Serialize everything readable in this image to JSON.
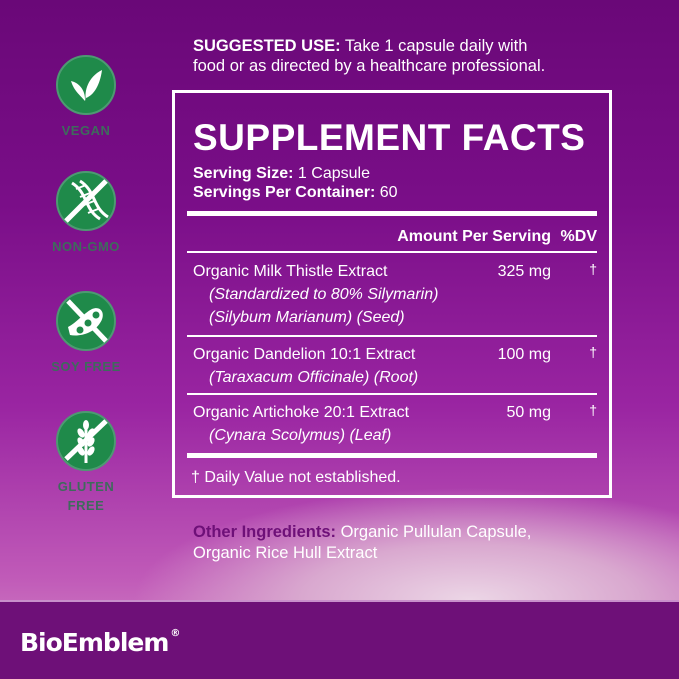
{
  "badges": [
    {
      "label": "VEGAN",
      "icon": "leaf-icon"
    },
    {
      "label": "NON-GMO",
      "icon": "dna-crossed-icon"
    },
    {
      "label": "SOY FREE",
      "icon": "soybean-crossed-icon"
    },
    {
      "label": "GLUTEN FREE",
      "icon": "wheat-crossed-icon"
    }
  ],
  "suggested_use": {
    "label": "SUGGESTED USE:",
    "text_1": " Take 1 capsule daily with",
    "text_2": "food or as directed by a healthcare professional."
  },
  "facts": {
    "title": "SUPPLEMENT FACTS",
    "serving_size_label": "Serving Size:",
    "serving_size": " 1 Capsule",
    "servings_label": "Servings Per Container:",
    "servings": " 60",
    "amount_header": "Amount Per Serving",
    "dv_header": "%DV",
    "rows": [
      {
        "name": "Organic Milk Thistle Extract",
        "sub1": "(Standardized to 80% Silymarin)",
        "sub2": "(Silybum Marianum) (Seed)",
        "amount": "325 mg",
        "dv": "†"
      },
      {
        "name": "Organic Dandelion 10:1 Extract",
        "sub1": "(Taraxacum Officinale) (Root)",
        "amount": "100 mg",
        "dv": "†"
      },
      {
        "name": "Organic Artichoke 20:1 Extract",
        "sub1": "(Cynara Scolymus) (Leaf)",
        "amount": "50 mg",
        "dv": "†"
      }
    ],
    "footnote": "† Daily Value not established."
  },
  "other": {
    "label": "Other Ingredients:",
    "text_1": " Organic Pullulan Capsule,",
    "text_2": "Organic Rice Hull Extract"
  },
  "brand": {
    "name": "BioEmblem",
    "mark": "®"
  },
  "colors": {
    "badge_green": "#1f8a4a",
    "footer": "#6e1078",
    "other_label": "#6e1078"
  }
}
